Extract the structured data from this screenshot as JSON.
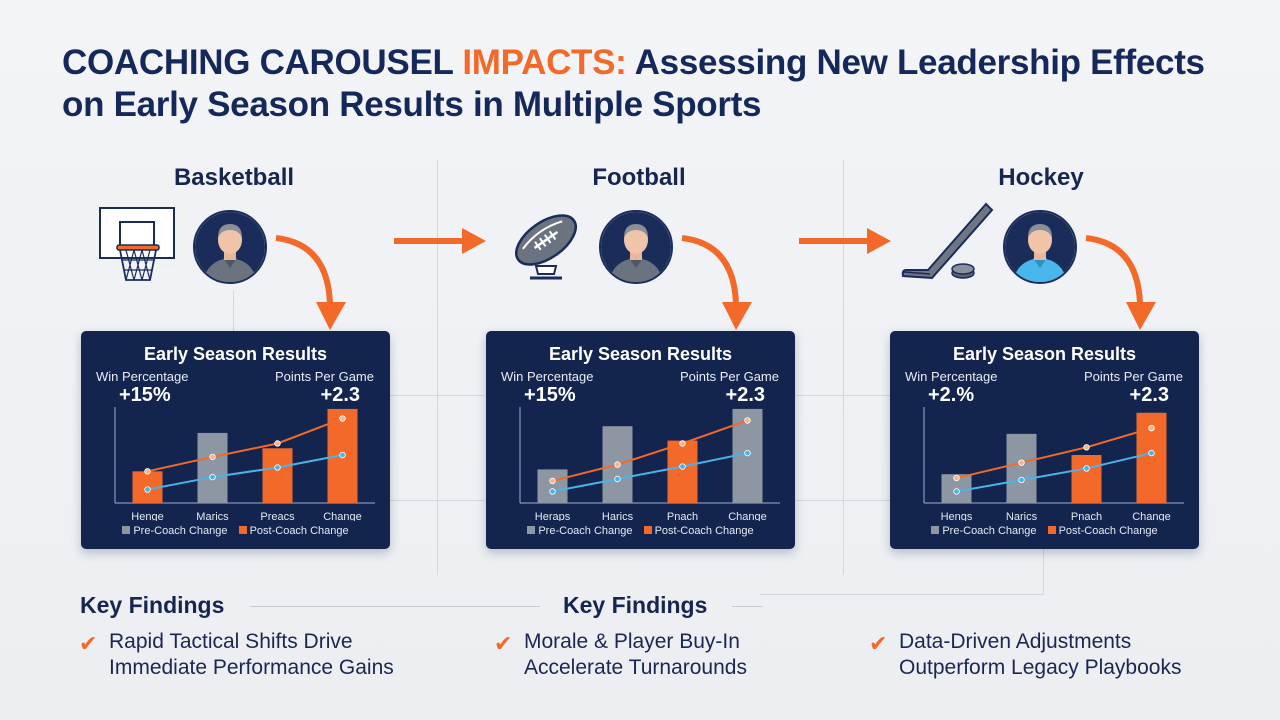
{
  "title": {
    "part1": "COACHING CAROUSEL ",
    "accent": "IMPACTS:",
    "part2": " Assessing New Leadership Effects on Early Season Results in Multiple Sports"
  },
  "colors": {
    "navy": "#13254f",
    "orange": "#f2692a",
    "gray_bar": "#8d96a3",
    "blue_line": "#4ab3e8"
  },
  "icons": [
    "basketball-hoop-icon",
    "coach-avatar-icon",
    "american-football-icon",
    "hockey-stick-icon",
    "hockey-puck-icon",
    "arrow-right-icon",
    "curved-arrow-icon",
    "checkmark-icon"
  ],
  "sports": [
    {
      "name": "Basketball",
      "panel": {
        "title": "Early Season Results",
        "metric1_label": "Win Percentage",
        "metric1_value": "+15%",
        "metric2_label": "Points Per Game",
        "metric2_value": "+2.3",
        "legend": [
          "Pre-Coach Change",
          "Post-Coach Change"
        ]
      }
    },
    {
      "name": "Football",
      "panel": {
        "title": "Early Season Results",
        "metric1_label": "Win Percentage",
        "metric1_value": "+15%",
        "metric2_label": "Points Per Game",
        "metric2_value": "+2.3",
        "legend": [
          "Pre-Coach Change",
          "Post-Coach Change"
        ]
      }
    },
    {
      "name": "Hockey",
      "panel": {
        "title": "Early Season Results",
        "metric1_label": "Win Percentage",
        "metric1_value": "+2.%",
        "metric2_label": "Points Per Game",
        "metric2_value": "+2.3",
        "legend": [
          "Pre-Coach Change",
          "Post-Coach Change"
        ]
      }
    }
  ],
  "key_findings": {
    "heading": "Key Findings",
    "items": [
      {
        "line1": "Rapid Tactical Shifts Drive",
        "line2": "Immediate Performance Gains"
      },
      {
        "line1": "Morale & Player Buy-In",
        "line2": "Accelerate Turnarounds"
      },
      {
        "line1": "Data-Driven Adjustments",
        "line2": "Outperform Legacy Playbooks"
      }
    ]
  },
  "chart_data": [
    {
      "type": "bar",
      "title": "Early Season Results",
      "categories": [
        "Henge",
        "Marics",
        "Preacs",
        "Change"
      ],
      "ylim": [
        0,
        100
      ],
      "series": [
        {
          "name": "Pre-Coach Change",
          "kind": "bar",
          "color": "#8d96a3"
        },
        {
          "name": "Post-Coach Change",
          "kind": "bar",
          "color": "#f2692a"
        }
      ],
      "bars": [
        {
          "category": "Henge",
          "series": "Post-Coach Change",
          "value": 33
        },
        {
          "category": "Marics",
          "series": "Pre-Coach Change",
          "value": 73
        },
        {
          "category": "Preacs",
          "series": "Post-Coach Change",
          "value": 57
        },
        {
          "category": "Change",
          "series": "Post-Coach Change",
          "value": 98
        }
      ],
      "lines": [
        {
          "color": "#f2692a",
          "marker": "#f4b48c",
          "values": [
            33,
            48,
            62,
            88
          ]
        },
        {
          "color": "#4ab3e8",
          "marker": "#4ab3e8",
          "values": [
            14,
            27,
            37,
            50
          ]
        }
      ]
    },
    {
      "type": "bar",
      "title": "Early Season Results",
      "categories": [
        "Heraps",
        "Harics",
        "Pnach",
        "Change"
      ],
      "ylim": [
        0,
        100
      ],
      "series": [
        {
          "name": "Pre-Coach Change",
          "kind": "bar",
          "color": "#8d96a3"
        },
        {
          "name": "Post-Coach Change",
          "kind": "bar",
          "color": "#f2692a"
        }
      ],
      "bars": [
        {
          "category": "Heraps",
          "series": "Pre-Coach Change",
          "value": 35
        },
        {
          "category": "Harics",
          "series": "Pre-Coach Change",
          "value": 80
        },
        {
          "category": "Pnach",
          "series": "Post-Coach Change",
          "value": 65
        },
        {
          "category": "Change",
          "series": "Pre-Coach Change",
          "value": 98
        }
      ],
      "lines": [
        {
          "color": "#f2692a",
          "marker": "#f4b48c",
          "values": [
            23,
            40,
            62,
            86
          ]
        },
        {
          "color": "#4ab3e8",
          "marker": "#4ab3e8",
          "values": [
            12,
            25,
            38,
            52
          ]
        }
      ]
    },
    {
      "type": "bar",
      "title": "Early Season Results",
      "categories": [
        "Hengs",
        "Narics",
        "Pnach",
        "Change"
      ],
      "ylim": [
        0,
        100
      ],
      "series": [
        {
          "name": "Pre-Coach Change",
          "kind": "bar",
          "color": "#8d96a3"
        },
        {
          "name": "Post-Coach Change",
          "kind": "bar",
          "color": "#f2692a"
        }
      ],
      "bars": [
        {
          "category": "Hengs",
          "series": "Pre-Coach Change",
          "value": 30
        },
        {
          "category": "Narics",
          "series": "Pre-Coach Change",
          "value": 72
        },
        {
          "category": "Pnach",
          "series": "Post-Coach Change",
          "value": 50
        },
        {
          "category": "Change",
          "series": "Post-Coach Change",
          "value": 94
        }
      ],
      "lines": [
        {
          "color": "#f2692a",
          "marker": "#f4b48c",
          "values": [
            26,
            42,
            58,
            78
          ]
        },
        {
          "color": "#4ab3e8",
          "marker": "#4ab3e8",
          "values": [
            12,
            24,
            36,
            52
          ]
        }
      ]
    }
  ]
}
